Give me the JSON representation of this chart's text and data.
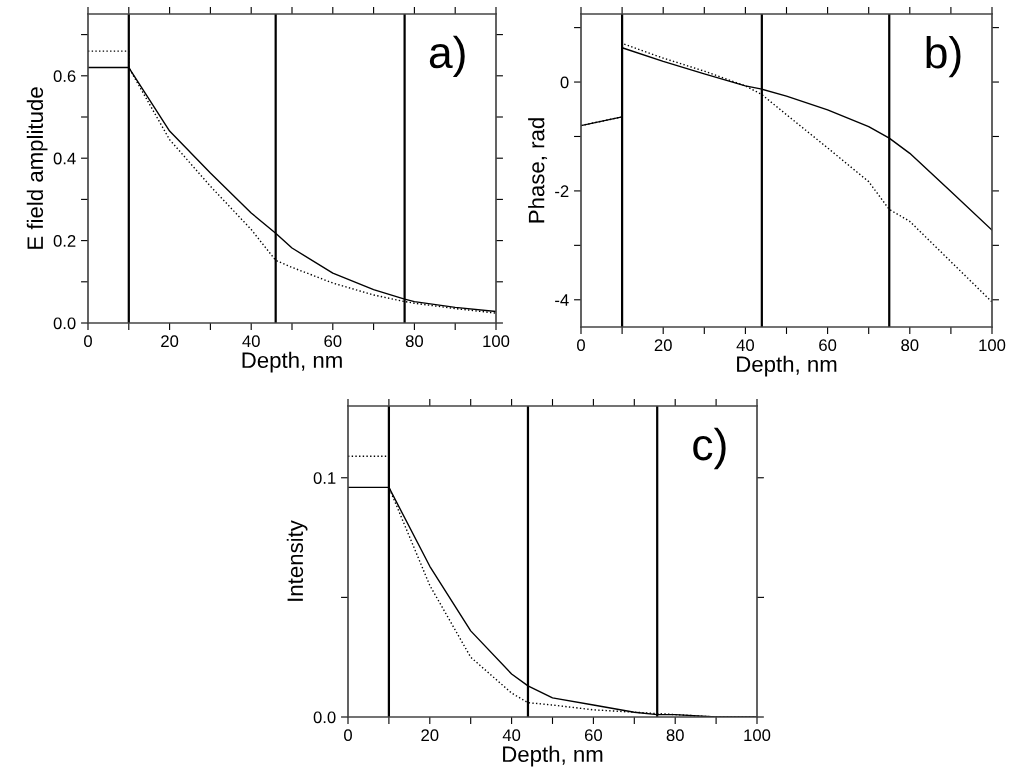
{
  "chart_data": [
    {
      "type": "line",
      "xlabel": "Depth, nm",
      "ylabel": "E field amplitude",
      "annotations": [
        "a)"
      ],
      "xlim": [
        0,
        100
      ],
      "ylim": [
        0,
        0.75
      ],
      "xticks": [
        0,
        {
          "value": 10,
          "label": null
        },
        20,
        {
          "value": 30,
          "label": null
        },
        40,
        {
          "value": 50,
          "label": null
        },
        60,
        {
          "value": 70,
          "label": null
        },
        80,
        {
          "value": 90,
          "label": null
        },
        100
      ],
      "yticks": [
        {
          "value": 0,
          "label": "0.0"
        },
        {
          "value": 0.1,
          "label": null
        },
        0.2,
        {
          "value": 0.3,
          "label": null
        },
        0.4,
        {
          "value": 0.5,
          "label": null
        },
        0.6,
        {
          "value": 0.7,
          "label": null
        }
      ],
      "ref_lines": [
        {
          "axis": "x",
          "value": 10,
          "color": "#000000"
        },
        {
          "axis": "x",
          "value": 46,
          "color": "#000000"
        },
        {
          "axis": "x",
          "value": 77.6,
          "color": "#000000"
        }
      ],
      "series": [
        {
          "color": "#000000",
          "line_style": "solid",
          "x": [
            0,
            10,
            20,
            30,
            40,
            46,
            50,
            60,
            70,
            77.6,
            80,
            90,
            100
          ],
          "values": [
            0.62,
            0.62,
            0.466,
            0.364,
            0.267,
            0.218,
            0.182,
            0.121,
            0.081,
            0.058,
            0.052,
            0.038,
            0.028
          ]
        },
        {
          "color": "#000000",
          "line_style": "dotted",
          "x": [
            0,
            10,
            10,
            20,
            30,
            40,
            46,
            50,
            60,
            70,
            77.6,
            80,
            90,
            100
          ],
          "values": [
            0.66,
            0.66,
            0.62,
            0.445,
            0.332,
            0.227,
            0.152,
            0.135,
            0.097,
            0.068,
            0.052,
            0.048,
            0.035,
            0.024
          ]
        }
      ]
    },
    {
      "type": "line",
      "xlabel": "Depth, nm",
      "ylabel": "Phase, rad",
      "annotations": [
        "b)"
      ],
      "xlim": [
        0,
        100
      ],
      "ylim": [
        -4.5,
        1.25
      ],
      "xticks": [
        0,
        {
          "value": 10,
          "label": null
        },
        20,
        {
          "value": 30,
          "label": null
        },
        40,
        {
          "value": 50,
          "label": null
        },
        60,
        {
          "value": 70,
          "label": null
        },
        80,
        {
          "value": 90,
          "label": null
        },
        100
      ],
      "yticks": [
        -4,
        {
          "value": -3,
          "label": null
        },
        -2,
        {
          "value": -1,
          "label": null
        },
        0,
        {
          "value": 1,
          "label": null
        }
      ],
      "ref_lines": [
        {
          "axis": "x",
          "value": 10,
          "color": "#000000"
        },
        {
          "axis": "x",
          "value": 44,
          "color": "#000000"
        },
        {
          "axis": "x",
          "value": 75,
          "color": "#000000"
        }
      ],
      "series": [
        {
          "color": "#000000",
          "line_style": "solid",
          "x": [
            0,
            10,
            10,
            20,
            30,
            40,
            44,
            50,
            60,
            70,
            75,
            80,
            90,
            100
          ],
          "values": [
            -0.8,
            -0.64,
            0.63,
            0.38,
            0.15,
            -0.07,
            -0.13,
            -0.26,
            -0.51,
            -0.82,
            -1.03,
            -1.31,
            -2.01,
            -2.72
          ]
        },
        {
          "color": "#000000",
          "line_style": "dotted",
          "x": [
            0,
            10,
            10,
            20,
            30,
            40,
            44,
            50,
            60,
            70,
            75,
            80,
            90,
            100
          ],
          "values": [
            -0.8,
            -0.64,
            0.71,
            0.44,
            0.2,
            -0.07,
            -0.23,
            -0.6,
            -1.21,
            -1.83,
            -2.34,
            -2.56,
            -3.3,
            -4.04
          ]
        }
      ]
    },
    {
      "type": "line",
      "xlabel": "Depth, nm",
      "ylabel": "Intensity",
      "annotations": [
        "c)"
      ],
      "xlim": [
        0,
        100
      ],
      "ylim": [
        0,
        0.13
      ],
      "xticks": [
        0,
        {
          "value": 10,
          "label": null
        },
        20,
        {
          "value": 30,
          "label": null
        },
        40,
        {
          "value": 50,
          "label": null
        },
        60,
        {
          "value": 70,
          "label": null
        },
        80,
        {
          "value": 90,
          "label": null
        },
        100
      ],
      "yticks": [
        {
          "value": 0,
          "label": "0.0"
        },
        {
          "value": 0.05,
          "label": null
        },
        0.1
      ],
      "ref_lines": [
        {
          "axis": "x",
          "value": 10,
          "color": "#000000"
        },
        {
          "axis": "x",
          "value": 44,
          "color": "#000000"
        },
        {
          "axis": "x",
          "value": 75.6,
          "color": "#000000"
        }
      ],
      "series": [
        {
          "color": "#000000",
          "line_style": "solid",
          "x": [
            0,
            10,
            20,
            30,
            40,
            44,
            50,
            60,
            70,
            75.6,
            80,
            90,
            100
          ],
          "values": [
            0.096,
            0.096,
            0.063,
            0.036,
            0.018,
            0.013,
            0.008,
            0.005,
            0.002,
            0.001,
            0.001,
            0.0,
            0.0
          ]
        },
        {
          "color": "#000000",
          "line_style": "dotted",
          "x": [
            0,
            10,
            10,
            20,
            30,
            40,
            44,
            50,
            60,
            70,
            80,
            90,
            100
          ],
          "values": [
            0.109,
            0.109,
            0.096,
            0.055,
            0.025,
            0.01,
            0.006,
            0.005,
            0.003,
            0.002,
            0.001,
            0.0,
            0.0
          ]
        }
      ]
    }
  ]
}
